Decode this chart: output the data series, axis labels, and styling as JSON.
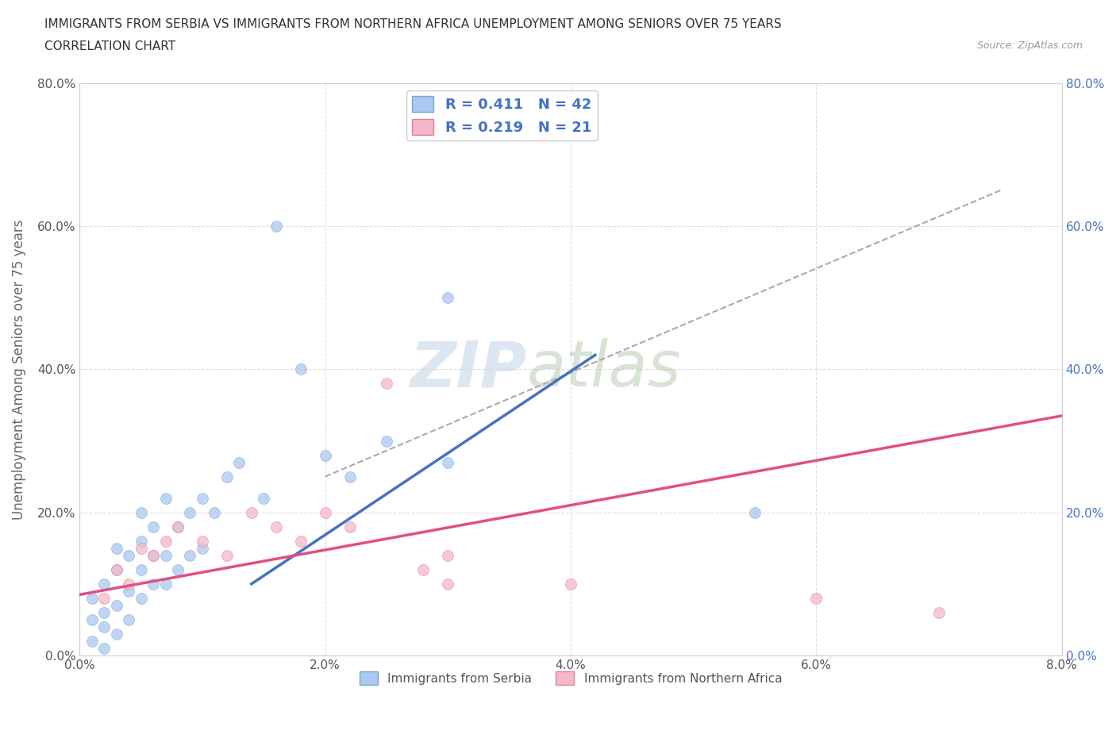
{
  "title_line1": "IMMIGRANTS FROM SERBIA VS IMMIGRANTS FROM NORTHERN AFRICA UNEMPLOYMENT AMONG SENIORS OVER 75 YEARS",
  "title_line2": "CORRELATION CHART",
  "source": "Source: ZipAtlas.com",
  "ylabel": "Unemployment Among Seniors over 75 years",
  "watermark_zip": "ZIP",
  "watermark_atlas": "atlas",
  "xlim": [
    0.0,
    0.08
  ],
  "ylim": [
    0.0,
    0.8
  ],
  "xticks": [
    0.0,
    0.02,
    0.04,
    0.06,
    0.08
  ],
  "xtick_labels": [
    "0.0%",
    "2.0%",
    "4.0%",
    "6.0%",
    "8.0%"
  ],
  "yticks": [
    0.0,
    0.2,
    0.4,
    0.6,
    0.8
  ],
  "ytick_labels": [
    "0.0%",
    "20.0%",
    "40.0%",
    "60.0%",
    "80.0%"
  ],
  "serbia_color": "#aac8f0",
  "serbia_edge_color": "#7aaad0",
  "serbia_line_color": "#4472c4",
  "northern_africa_color": "#f4b8c8",
  "northern_africa_edge_color": "#e080a0",
  "northern_africa_line_color": "#e05080",
  "serbia_R": 0.411,
  "serbia_N": 42,
  "northern_africa_R": 0.219,
  "northern_africa_N": 21,
  "serbia_scatter_x": [
    0.001,
    0.001,
    0.001,
    0.002,
    0.002,
    0.002,
    0.002,
    0.003,
    0.003,
    0.003,
    0.003,
    0.004,
    0.004,
    0.004,
    0.005,
    0.005,
    0.005,
    0.005,
    0.006,
    0.006,
    0.006,
    0.007,
    0.007,
    0.007,
    0.008,
    0.008,
    0.009,
    0.009,
    0.01,
    0.01,
    0.011,
    0.012,
    0.013,
    0.015,
    0.016,
    0.018,
    0.02,
    0.022,
    0.025,
    0.03,
    0.03,
    0.055
  ],
  "serbia_scatter_y": [
    0.02,
    0.05,
    0.08,
    0.01,
    0.04,
    0.06,
    0.1,
    0.03,
    0.07,
    0.12,
    0.15,
    0.05,
    0.09,
    0.14,
    0.08,
    0.12,
    0.16,
    0.2,
    0.1,
    0.14,
    0.18,
    0.1,
    0.14,
    0.22,
    0.12,
    0.18,
    0.14,
    0.2,
    0.15,
    0.22,
    0.2,
    0.25,
    0.27,
    0.22,
    0.6,
    0.4,
    0.28,
    0.25,
    0.3,
    0.27,
    0.5,
    0.2
  ],
  "northern_africa_scatter_x": [
    0.002,
    0.003,
    0.004,
    0.005,
    0.006,
    0.007,
    0.008,
    0.01,
    0.012,
    0.014,
    0.016,
    0.018,
    0.02,
    0.022,
    0.025,
    0.028,
    0.03,
    0.03,
    0.04,
    0.06,
    0.07
  ],
  "northern_africa_scatter_y": [
    0.08,
    0.12,
    0.1,
    0.15,
    0.14,
    0.16,
    0.18,
    0.16,
    0.14,
    0.2,
    0.18,
    0.16,
    0.2,
    0.18,
    0.38,
    0.12,
    0.1,
    0.14,
    0.1,
    0.08,
    0.06
  ],
  "serbia_line_x": [
    0.014,
    0.042
  ],
  "serbia_line_y": [
    0.1,
    0.42
  ],
  "northern_africa_line_x": [
    0.0,
    0.08
  ],
  "northern_africa_line_y": [
    0.085,
    0.335
  ],
  "dash_line_x": [
    0.02,
    0.075
  ],
  "dash_line_y": [
    0.25,
    0.65
  ],
  "background_color": "#ffffff",
  "grid_color": "#dddddd",
  "title_color": "#333333",
  "axis_label_color": "#666666",
  "tick_color": "#555555",
  "right_tick_color": "#4472c4",
  "legend_text_color": "#4472c4",
  "legend_border_color": "#cccccc"
}
